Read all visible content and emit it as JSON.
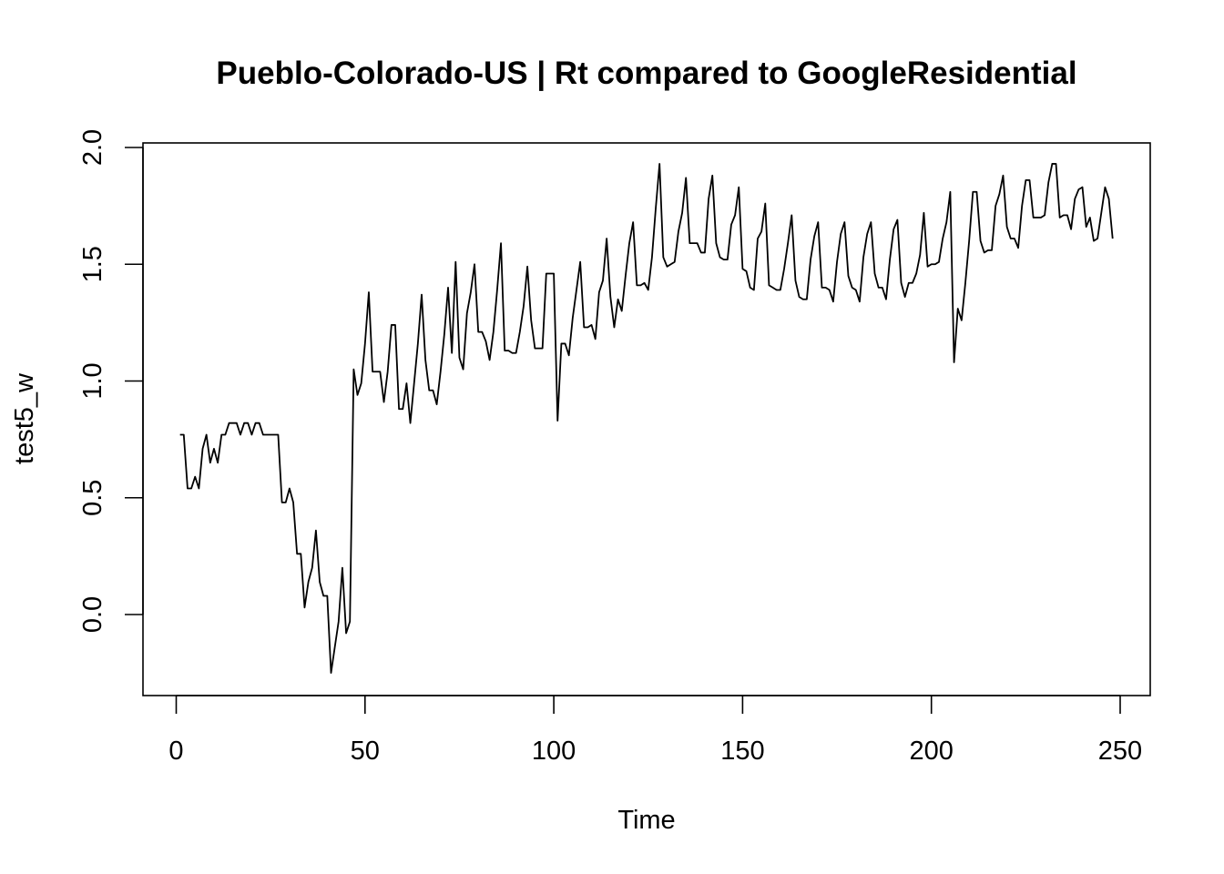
{
  "chart_data": {
    "type": "line",
    "title": "Pueblo-Colorado-US | Rt compared to GoogleResidential",
    "xlabel": "Time",
    "ylabel": "test5_w",
    "xlim": [
      1,
      248
    ],
    "ylim": [
      -0.25,
      1.95
    ],
    "xticks": [
      0,
      50,
      100,
      150,
      200,
      250
    ],
    "yticks": [
      0.0,
      0.5,
      1.0,
      1.5,
      2.0
    ],
    "xtick_labels": [
      "0",
      "50",
      "100",
      "150",
      "200",
      "250"
    ],
    "ytick_labels": [
      "0.0",
      "0.5",
      "1.0",
      "1.5",
      "2.0"
    ],
    "grid": false,
    "legend": "none",
    "series": [
      {
        "color": "#000000",
        "x_start": 1,
        "values": [
          0.77,
          0.77,
          0.54,
          0.54,
          0.59,
          0.54,
          0.71,
          0.77,
          0.65,
          0.71,
          0.65,
          0.77,
          0.77,
          0.82,
          0.82,
          0.82,
          0.77,
          0.82,
          0.82,
          0.77,
          0.82,
          0.82,
          0.77,
          0.77,
          0.77,
          0.77,
          0.77,
          0.48,
          0.48,
          0.54,
          0.48,
          0.26,
          0.26,
          0.03,
          0.14,
          0.2,
          0.36,
          0.14,
          0.08,
          0.08,
          -0.25,
          -0.14,
          -0.03,
          0.2,
          -0.08,
          -0.03,
          1.05,
          0.94,
          0.99,
          1.16,
          1.38,
          1.04,
          1.04,
          1.04,
          0.91,
          1.04,
          1.24,
          1.24,
          0.88,
          0.88,
          0.99,
          0.82,
          0.99,
          1.16,
          1.37,
          1.09,
          0.96,
          0.96,
          0.9,
          1.04,
          1.2,
          1.4,
          1.12,
          1.51,
          1.1,
          1.05,
          1.29,
          1.38,
          1.5,
          1.21,
          1.21,
          1.17,
          1.09,
          1.21,
          1.39,
          1.59,
          1.13,
          1.13,
          1.12,
          1.12,
          1.21,
          1.32,
          1.49,
          1.26,
          1.14,
          1.14,
          1.14,
          1.46,
          1.46,
          1.46,
          0.83,
          1.16,
          1.16,
          1.11,
          1.27,
          1.39,
          1.51,
          1.23,
          1.23,
          1.24,
          1.18,
          1.38,
          1.43,
          1.61,
          1.36,
          1.23,
          1.35,
          1.3,
          1.45,
          1.59,
          1.68,
          1.41,
          1.41,
          1.42,
          1.39,
          1.53,
          1.74,
          1.93,
          1.53,
          1.49,
          1.5,
          1.51,
          1.64,
          1.72,
          1.87,
          1.59,
          1.59,
          1.59,
          1.55,
          1.55,
          1.78,
          1.88,
          1.59,
          1.53,
          1.52,
          1.52,
          1.67,
          1.71,
          1.83,
          1.48,
          1.47,
          1.4,
          1.39,
          1.61,
          1.64,
          1.76,
          1.41,
          1.4,
          1.39,
          1.39,
          1.48,
          1.59,
          1.71,
          1.43,
          1.36,
          1.35,
          1.35,
          1.52,
          1.62,
          1.68,
          1.4,
          1.4,
          1.39,
          1.34,
          1.51,
          1.63,
          1.68,
          1.45,
          1.4,
          1.39,
          1.34,
          1.53,
          1.63,
          1.68,
          1.46,
          1.4,
          1.4,
          1.35,
          1.52,
          1.65,
          1.69,
          1.42,
          1.36,
          1.42,
          1.42,
          1.46,
          1.54,
          1.72,
          1.49,
          1.5,
          1.5,
          1.51,
          1.61,
          1.68,
          1.81,
          1.08,
          1.31,
          1.26,
          1.42,
          1.6,
          1.81,
          1.81,
          1.6,
          1.55,
          1.56,
          1.56,
          1.75,
          1.8,
          1.88,
          1.66,
          1.61,
          1.61,
          1.57,
          1.75,
          1.86,
          1.86,
          1.7,
          1.7,
          1.7,
          1.71,
          1.85,
          1.93,
          1.93,
          1.7,
          1.71,
          1.71,
          1.65,
          1.78,
          1.82,
          1.83,
          1.66,
          1.7,
          1.6,
          1.61,
          1.72,
          1.83,
          1.78,
          1.61
        ]
      }
    ]
  }
}
